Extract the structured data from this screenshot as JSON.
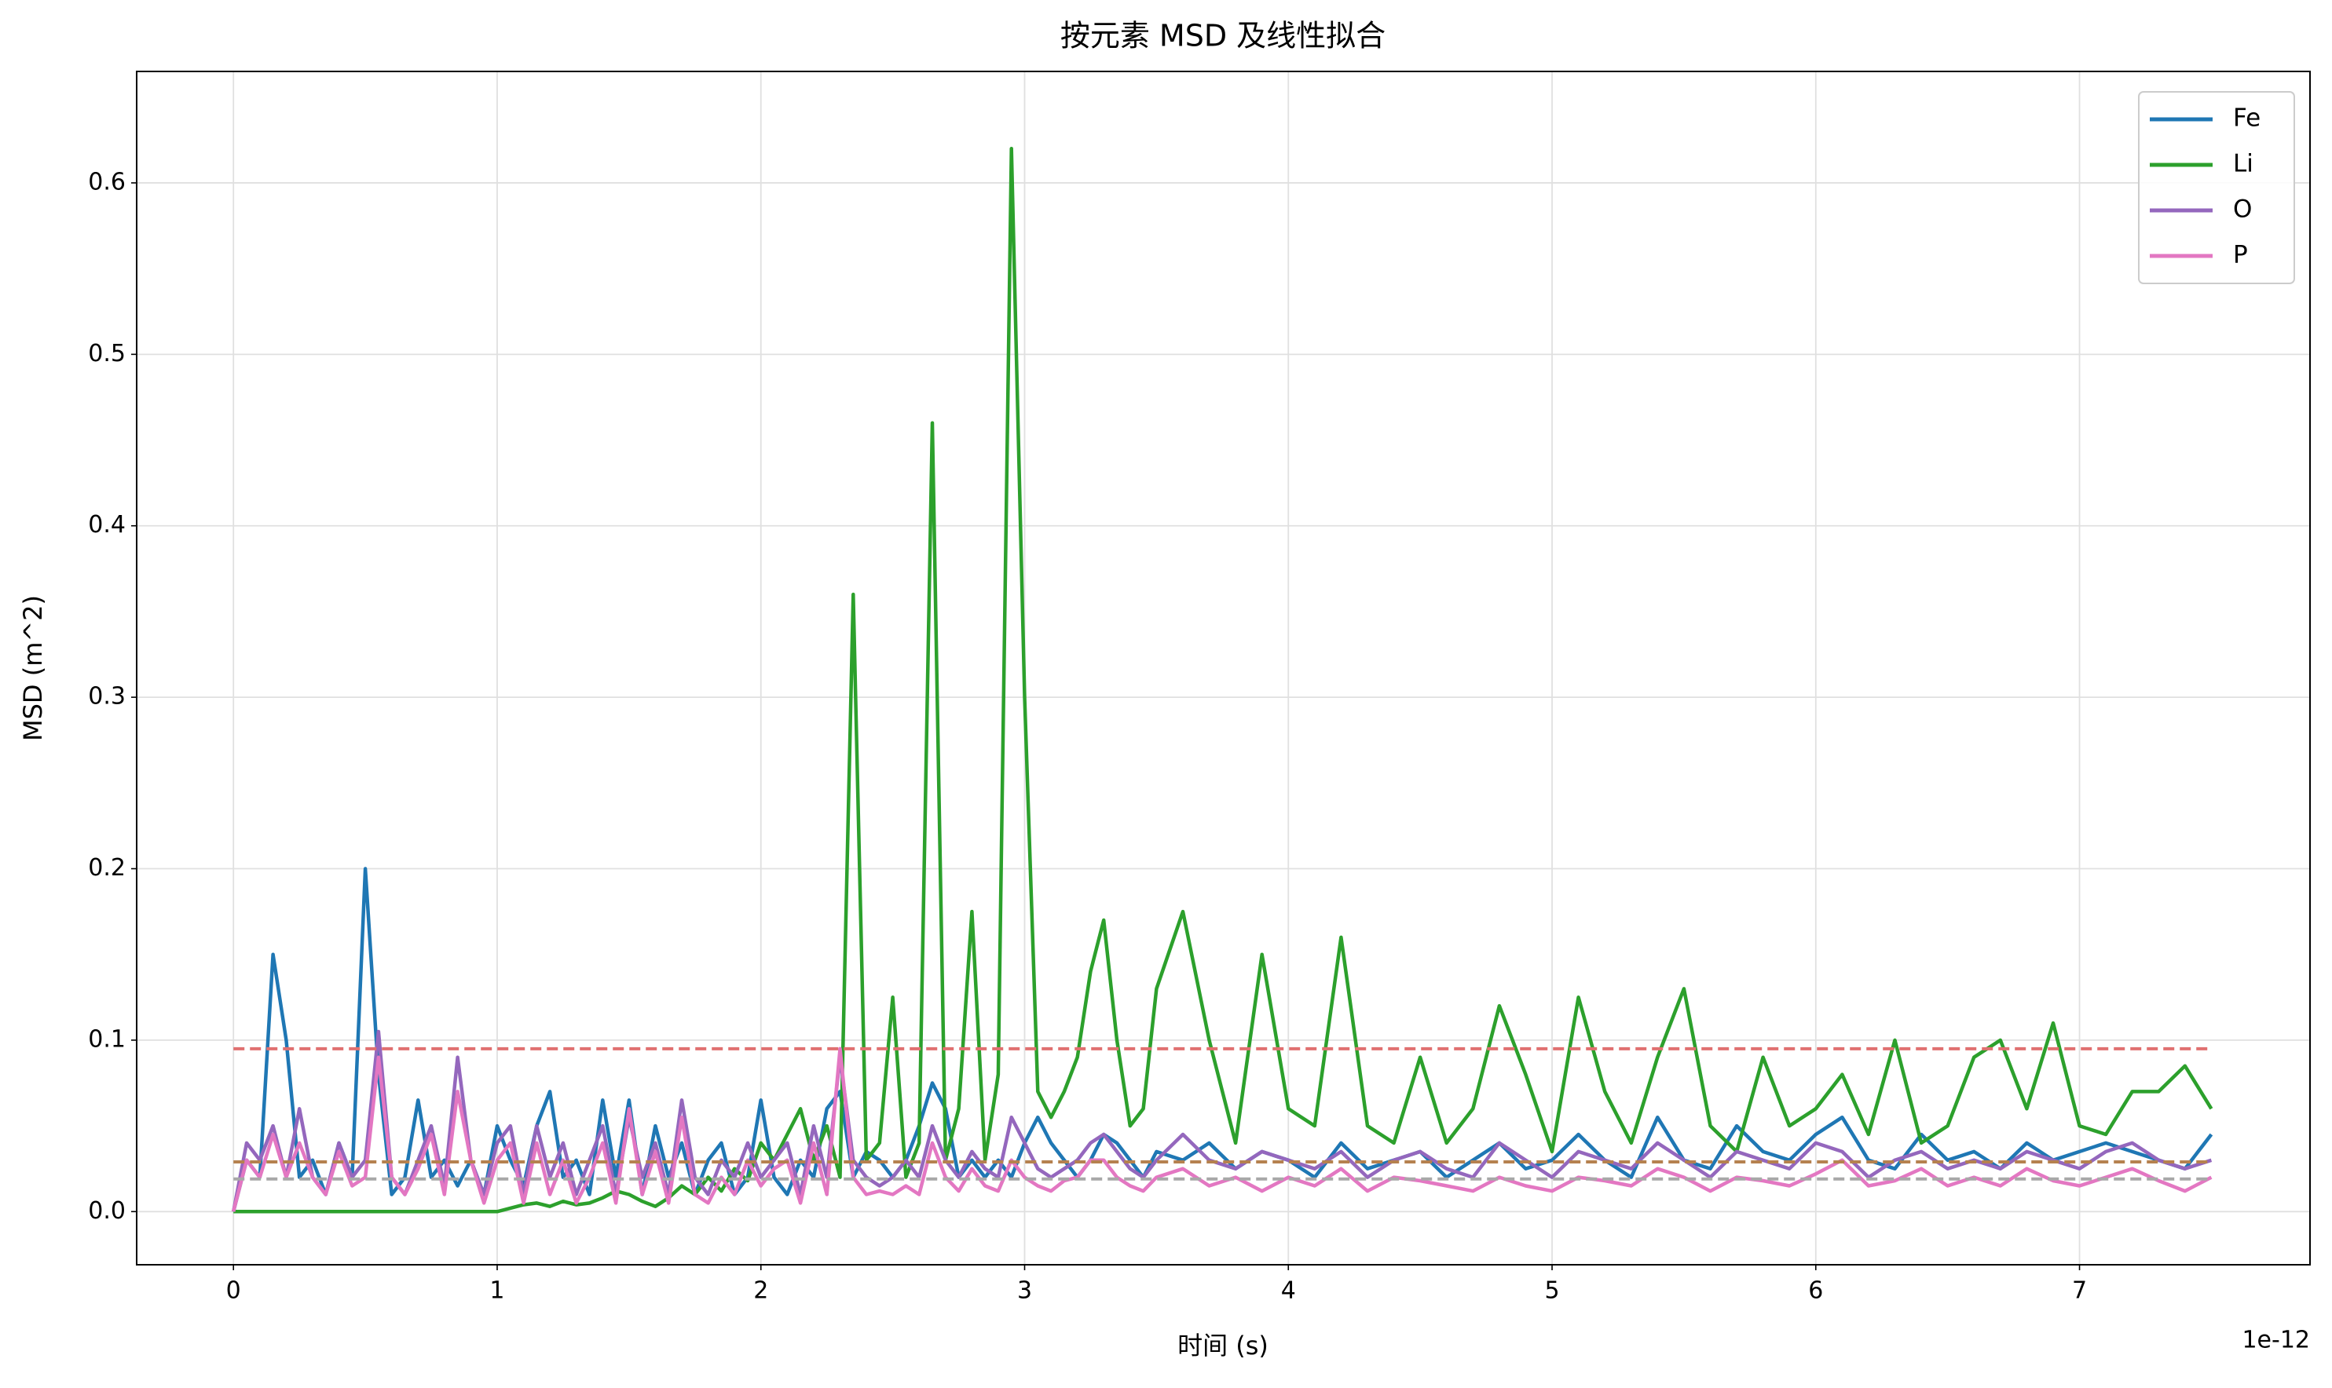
{
  "chart_data": {
    "type": "line",
    "title": "按元素 MSD 及线性拟合",
    "x_label": "时间 (s)",
    "y_label": "MSD (m^2)",
    "x_offset_label": "1e-12",
    "x": [
      0,
      0.05,
      0.1,
      0.15,
      0.2,
      0.25,
      0.3,
      0.35,
      0.4,
      0.45,
      0.5,
      0.55,
      0.6,
      0.65,
      0.7,
      0.75,
      0.8,
      0.85,
      0.9,
      0.95,
      1.0,
      1.05,
      1.1,
      1.15,
      1.2,
      1.25,
      1.3,
      1.35,
      1.4,
      1.45,
      1.5,
      1.55,
      1.6,
      1.65,
      1.7,
      1.75,
      1.8,
      1.85,
      1.9,
      1.95,
      2.0,
      2.05,
      2.1,
      2.15,
      2.2,
      2.25,
      2.3,
      2.35,
      2.4,
      2.45,
      2.5,
      2.55,
      2.6,
      2.65,
      2.7,
      2.75,
      2.8,
      2.85,
      2.9,
      2.95,
      3.0,
      3.05,
      3.1,
      3.15,
      3.2,
      3.25,
      3.3,
      3.35,
      3.4,
      3.45,
      3.5,
      3.6,
      3.7,
      3.8,
      3.9,
      4.0,
      4.1,
      4.2,
      4.3,
      4.4,
      4.5,
      4.6,
      4.7,
      4.8,
      4.9,
      5.0,
      5.1,
      5.2,
      5.3,
      5.4,
      5.5,
      5.6,
      5.7,
      5.8,
      5.9,
      6.0,
      6.1,
      6.2,
      6.3,
      6.4,
      6.5,
      6.6,
      6.7,
      6.8,
      6.9,
      7.0,
      7.1,
      7.2,
      7.3,
      7.4,
      7.5
    ],
    "series": [
      {
        "name": "Fe",
        "color": "#1f77b4",
        "values": [
          0,
          0.03,
          0.02,
          0.15,
          0.1,
          0.02,
          0.03,
          0.01,
          0.04,
          0.02,
          0.2,
          0.08,
          0.01,
          0.02,
          0.065,
          0.02,
          0.03,
          0.015,
          0.03,
          0.01,
          0.05,
          0.03,
          0.015,
          0.05,
          0.07,
          0.02,
          0.03,
          0.01,
          0.065,
          0.02,
          0.065,
          0.01,
          0.05,
          0.02,
          0.04,
          0.01,
          0.03,
          0.04,
          0.01,
          0.02,
          0.065,
          0.02,
          0.01,
          0.03,
          0.02,
          0.06,
          0.07,
          0.02,
          0.035,
          0.03,
          0.02,
          0.03,
          0.05,
          0.075,
          0.06,
          0.02,
          0.03,
          0.02,
          0.03,
          0.02,
          0.04,
          0.055,
          0.04,
          0.03,
          0.02,
          0.03,
          0.045,
          0.04,
          0.03,
          0.02,
          0.035,
          0.03,
          0.04,
          0.025,
          0.035,
          0.03,
          0.02,
          0.04,
          0.025,
          0.03,
          0.035,
          0.02,
          0.03,
          0.04,
          0.025,
          0.03,
          0.045,
          0.03,
          0.02,
          0.055,
          0.03,
          0.025,
          0.05,
          0.035,
          0.03,
          0.045,
          0.055,
          0.03,
          0.025,
          0.045,
          0.03,
          0.035,
          0.025,
          0.04,
          0.03,
          0.035,
          0.04,
          0.035,
          0.03,
          0.025,
          0.045
        ]
      },
      {
        "name": "Li",
        "color": "#2ca02c",
        "values": [
          0,
          0,
          0,
          0,
          0,
          0,
          0,
          0,
          0,
          0,
          0,
          0,
          0,
          0,
          0,
          0,
          0,
          0,
          0,
          0,
          0,
          0.002,
          0.004,
          0.005,
          0.003,
          0.006,
          0.004,
          0.005,
          0.008,
          0.012,
          0.01,
          0.006,
          0.003,
          0.008,
          0.015,
          0.01,
          0.02,
          0.012,
          0.025,
          0.018,
          0.04,
          0.03,
          0.045,
          0.06,
          0.03,
          0.05,
          0.02,
          0.36,
          0.03,
          0.04,
          0.125,
          0.02,
          0.04,
          0.46,
          0.03,
          0.06,
          0.175,
          0.03,
          0.08,
          0.62,
          0.3,
          0.07,
          0.055,
          0.07,
          0.09,
          0.14,
          0.17,
          0.1,
          0.05,
          0.06,
          0.13,
          0.175,
          0.1,
          0.04,
          0.15,
          0.06,
          0.05,
          0.16,
          0.05,
          0.04,
          0.09,
          0.04,
          0.06,
          0.12,
          0.08,
          0.035,
          0.125,
          0.07,
          0.04,
          0.09,
          0.13,
          0.05,
          0.035,
          0.09,
          0.05,
          0.06,
          0.08,
          0.045,
          0.1,
          0.04,
          0.05,
          0.09,
          0.1,
          0.06,
          0.11,
          0.05,
          0.045,
          0.07,
          0.07,
          0.085,
          0.06
        ]
      },
      {
        "name": "O",
        "color": "#9467bd",
        "values": [
          0,
          0.04,
          0.03,
          0.05,
          0.02,
          0.06,
          0.02,
          0.01,
          0.04,
          0.02,
          0.03,
          0.105,
          0.02,
          0.01,
          0.03,
          0.05,
          0.015,
          0.09,
          0.03,
          0.01,
          0.04,
          0.05,
          0.01,
          0.05,
          0.02,
          0.04,
          0.01,
          0.03,
          0.05,
          0.01,
          0.055,
          0.02,
          0.04,
          0.01,
          0.065,
          0.02,
          0.01,
          0.03,
          0.02,
          0.04,
          0.02,
          0.03,
          0.04,
          0.01,
          0.05,
          0.02,
          0.09,
          0.03,
          0.02,
          0.015,
          0.02,
          0.03,
          0.02,
          0.05,
          0.03,
          0.02,
          0.035,
          0.025,
          0.02,
          0.055,
          0.04,
          0.025,
          0.02,
          0.025,
          0.03,
          0.04,
          0.045,
          0.035,
          0.025,
          0.02,
          0.03,
          0.045,
          0.03,
          0.025,
          0.035,
          0.03,
          0.025,
          0.035,
          0.02,
          0.03,
          0.035,
          0.025,
          0.02,
          0.04,
          0.03,
          0.02,
          0.035,
          0.03,
          0.025,
          0.04,
          0.03,
          0.02,
          0.035,
          0.03,
          0.025,
          0.04,
          0.035,
          0.02,
          0.03,
          0.035,
          0.025,
          0.03,
          0.025,
          0.035,
          0.03,
          0.025,
          0.035,
          0.04,
          0.03,
          0.025,
          0.03
        ]
      },
      {
        "name": "P",
        "color": "#e377c2",
        "values": [
          0,
          0.03,
          0.02,
          0.045,
          0.02,
          0.04,
          0.02,
          0.01,
          0.035,
          0.015,
          0.02,
          0.09,
          0.02,
          0.01,
          0.025,
          0.045,
          0.01,
          0.07,
          0.03,
          0.005,
          0.03,
          0.04,
          0.005,
          0.04,
          0.01,
          0.03,
          0.005,
          0.02,
          0.04,
          0.005,
          0.06,
          0.01,
          0.035,
          0.005,
          0.055,
          0.01,
          0.005,
          0.02,
          0.01,
          0.03,
          0.015,
          0.025,
          0.03,
          0.005,
          0.04,
          0.01,
          0.095,
          0.02,
          0.01,
          0.012,
          0.01,
          0.015,
          0.01,
          0.04,
          0.02,
          0.012,
          0.025,
          0.015,
          0.012,
          0.03,
          0.02,
          0.015,
          0.012,
          0.018,
          0.02,
          0.03,
          0.03,
          0.02,
          0.015,
          0.012,
          0.02,
          0.025,
          0.015,
          0.02,
          0.012,
          0.02,
          0.015,
          0.025,
          0.012,
          0.02,
          0.018,
          0.015,
          0.012,
          0.02,
          0.015,
          0.012,
          0.02,
          0.018,
          0.015,
          0.025,
          0.02,
          0.012,
          0.02,
          0.018,
          0.015,
          0.022,
          0.03,
          0.015,
          0.018,
          0.025,
          0.015,
          0.02,
          0.015,
          0.025,
          0.018,
          0.015,
          0.02,
          0.025,
          0.018,
          0.012,
          0.02
        ]
      }
    ],
    "reference_lines": [
      {
        "value": 0.095,
        "color": "#e07070",
        "xrange": [
          0,
          7.5
        ]
      },
      {
        "value": 0.029,
        "color": "#b5814f",
        "xrange": [
          0,
          7.5
        ]
      },
      {
        "value": 0.019,
        "color": "#a8a8a8",
        "xrange": [
          0,
          7.5
        ]
      }
    ],
    "xlim": [
      -0.367,
      7.874
    ],
    "ylim": [
      -0.031,
      0.665
    ],
    "xticks": [
      0,
      1,
      2,
      3,
      4,
      5,
      6,
      7
    ],
    "yticks": [
      {
        "value": 0,
        "label": "0.0"
      },
      0.1,
      0.2,
      0.3,
      0.4,
      0.5,
      0.6
    ],
    "grid": true,
    "legend": "upper right"
  }
}
